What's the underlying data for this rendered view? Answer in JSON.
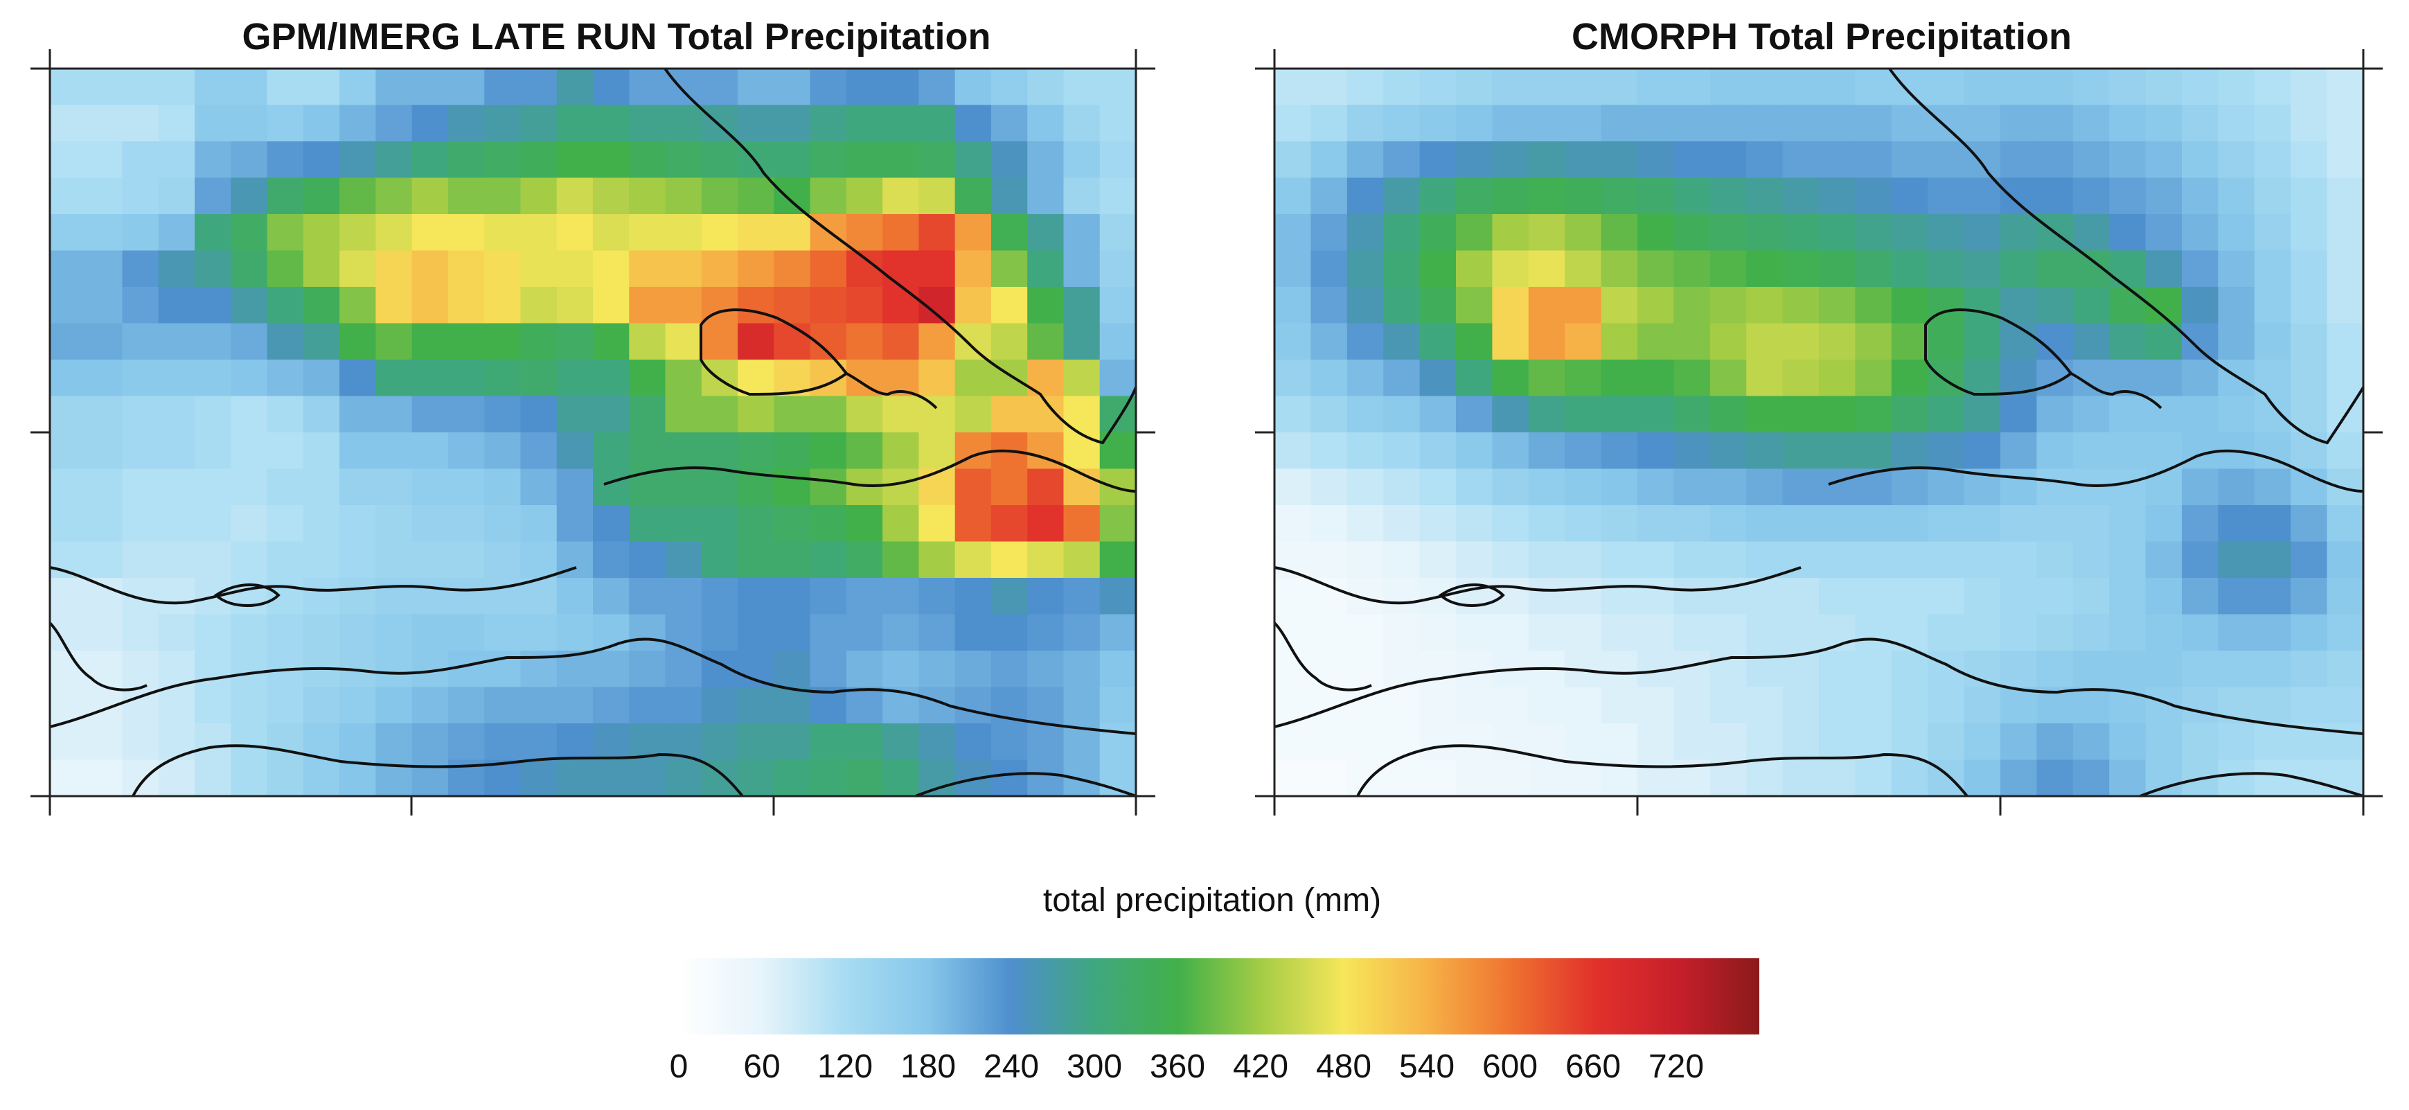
{
  "chart_data": [
    {
      "type": "heatmap",
      "title": "GPM/IMERG LATE RUN Total Precipitation",
      "units": "mm",
      "grid_rows": 20,
      "grid_cols": 30,
      "values": [
        [
          120,
          120,
          120,
          120,
          160,
          160,
          120,
          120,
          160,
          200,
          200,
          200,
          230,
          230,
          270,
          240,
          220,
          220,
          220,
          200,
          200,
          230,
          240,
          240,
          220,
          180,
          160,
          140,
          120,
          120
        ],
        [
          100,
          100,
          100,
          110,
          170,
          170,
          160,
          180,
          200,
          220,
          240,
          260,
          270,
          280,
          300,
          300,
          290,
          290,
          280,
          270,
          270,
          290,
          300,
          300,
          300,
          240,
          210,
          180,
          140,
          120
        ],
        [
          110,
          110,
          130,
          130,
          200,
          210,
          230,
          240,
          260,
          280,
          300,
          320,
          330,
          340,
          360,
          360,
          340,
          330,
          320,
          310,
          310,
          330,
          340,
          340,
          330,
          290,
          250,
          200,
          160,
          130
        ],
        [
          120,
          120,
          130,
          140,
          220,
          260,
          320,
          340,
          380,
          400,
          420,
          400,
          400,
          420,
          450,
          430,
          420,
          410,
          390,
          380,
          360,
          400,
          420,
          460,
          450,
          340,
          260,
          200,
          140,
          120
        ],
        [
          160,
          160,
          170,
          190,
          300,
          330,
          400,
          420,
          440,
          460,
          480,
          480,
          470,
          470,
          480,
          460,
          470,
          470,
          480,
          490,
          490,
          560,
          580,
          600,
          640,
          560,
          350,
          280,
          200,
          140
        ],
        [
          200,
          200,
          230,
          260,
          280,
          320,
          380,
          420,
          460,
          500,
          520,
          500,
          490,
          470,
          470,
          480,
          520,
          520,
          540,
          560,
          580,
          610,
          650,
          660,
          660,
          540,
          400,
          300,
          200,
          150
        ],
        [
          200,
          200,
          220,
          240,
          240,
          270,
          300,
          340,
          400,
          500,
          520,
          500,
          490,
          450,
          460,
          480,
          560,
          560,
          580,
          610,
          620,
          630,
          640,
          660,
          700,
          520,
          480,
          360,
          280,
          160
        ],
        [
          210,
          210,
          200,
          200,
          200,
          210,
          260,
          280,
          360,
          380,
          360,
          360,
          360,
          340,
          330,
          360,
          440,
          470,
          580,
          680,
          640,
          620,
          600,
          620,
          560,
          460,
          440,
          380,
          280,
          180
        ],
        [
          180,
          180,
          170,
          170,
          170,
          180,
          190,
          200,
          240,
          300,
          300,
          300,
          310,
          320,
          300,
          300,
          360,
          400,
          440,
          480,
          500,
          520,
          560,
          560,
          520,
          420,
          420,
          540,
          440,
          200
        ],
        [
          140,
          140,
          130,
          130,
          120,
          110,
          120,
          150,
          200,
          200,
          220,
          220,
          230,
          240,
          280,
          280,
          320,
          400,
          400,
          420,
          400,
          400,
          440,
          460,
          460,
          440,
          520,
          520,
          480,
          320
        ],
        [
          140,
          140,
          130,
          130,
          120,
          110,
          110,
          120,
          180,
          180,
          180,
          190,
          200,
          220,
          260,
          300,
          320,
          320,
          320,
          330,
          340,
          360,
          380,
          420,
          460,
          580,
          600,
          560,
          480,
          360
        ],
        [
          120,
          120,
          110,
          110,
          110,
          110,
          120,
          120,
          150,
          150,
          160,
          160,
          170,
          200,
          220,
          300,
          320,
          320,
          320,
          340,
          360,
          380,
          420,
          440,
          500,
          620,
          600,
          640,
          520,
          420
        ],
        [
          120,
          120,
          110,
          110,
          110,
          100,
          110,
          120,
          130,
          140,
          150,
          150,
          160,
          170,
          220,
          240,
          300,
          300,
          300,
          320,
          330,
          340,
          360,
          420,
          480,
          620,
          640,
          660,
          600,
          400
        ],
        [
          110,
          110,
          100,
          100,
          100,
          110,
          120,
          120,
          130,
          140,
          140,
          140,
          150,
          160,
          200,
          230,
          240,
          260,
          300,
          320,
          320,
          310,
          330,
          380,
          420,
          460,
          480,
          460,
          440,
          360
        ],
        [
          80,
          80,
          90,
          90,
          100,
          110,
          120,
          130,
          140,
          150,
          150,
          150,
          150,
          150,
          180,
          200,
          220,
          220,
          230,
          240,
          240,
          230,
          220,
          220,
          230,
          240,
          260,
          240,
          230,
          250
        ],
        [
          80,
          80,
          90,
          100,
          110,
          120,
          130,
          140,
          150,
          160,
          170,
          170,
          160,
          160,
          170,
          180,
          200,
          220,
          230,
          240,
          240,
          220,
          220,
          210,
          220,
          240,
          240,
          230,
          220,
          200
        ],
        [
          70,
          70,
          80,
          90,
          110,
          120,
          130,
          140,
          150,
          160,
          170,
          180,
          180,
          190,
          200,
          200,
          210,
          220,
          240,
          240,
          250,
          220,
          200,
          190,
          200,
          210,
          220,
          210,
          200,
          180
        ],
        [
          70,
          70,
          80,
          90,
          110,
          120,
          130,
          150,
          160,
          180,
          190,
          200,
          210,
          210,
          210,
          220,
          230,
          230,
          250,
          260,
          260,
          240,
          220,
          200,
          210,
          220,
          230,
          220,
          200,
          170
        ],
        [
          70,
          70,
          80,
          90,
          100,
          120,
          140,
          160,
          180,
          200,
          210,
          220,
          230,
          230,
          240,
          250,
          260,
          260,
          270,
          280,
          280,
          300,
          300,
          280,
          260,
          240,
          230,
          220,
          200,
          160
        ],
        [
          60,
          60,
          70,
          80,
          100,
          120,
          140,
          160,
          180,
          200,
          210,
          230,
          240,
          250,
          260,
          260,
          260,
          270,
          280,
          290,
          300,
          310,
          320,
          300,
          270,
          250,
          240,
          220,
          200,
          160
        ]
      ]
    },
    {
      "type": "heatmap",
      "title": "CMORPH Total Precipitation",
      "units": "mm",
      "grid_rows": 20,
      "grid_cols": 30,
      "values": [
        [
          100,
          100,
          110,
          120,
          130,
          140,
          150,
          150,
          150,
          150,
          160,
          160,
          170,
          170,
          170,
          170,
          160,
          160,
          160,
          170,
          170,
          170,
          160,
          150,
          140,
          130,
          120,
          110,
          100,
          90
        ],
        [
          110,
          120,
          150,
          160,
          170,
          180,
          190,
          190,
          190,
          200,
          200,
          200,
          200,
          200,
          200,
          200,
          200,
          190,
          190,
          190,
          200,
          200,
          190,
          180,
          170,
          150,
          130,
          120,
          100,
          90
        ],
        [
          140,
          170,
          200,
          220,
          240,
          250,
          260,
          270,
          260,
          260,
          250,
          240,
          240,
          230,
          220,
          220,
          220,
          210,
          210,
          210,
          220,
          220,
          210,
          200,
          190,
          170,
          150,
          130,
          110,
          90
        ],
        [
          170,
          200,
          240,
          270,
          300,
          330,
          340,
          350,
          340,
          330,
          320,
          300,
          290,
          280,
          270,
          260,
          250,
          240,
          230,
          230,
          240,
          240,
          230,
          220,
          210,
          190,
          170,
          140,
          120,
          100
        ],
        [
          190,
          220,
          260,
          300,
          340,
          380,
          420,
          430,
          410,
          380,
          360,
          340,
          330,
          320,
          310,
          300,
          290,
          280,
          270,
          260,
          280,
          290,
          270,
          240,
          220,
          200,
          180,
          150,
          120,
          100
        ],
        [
          190,
          230,
          270,
          310,
          360,
          420,
          460,
          470,
          440,
          410,
          390,
          380,
          370,
          360,
          350,
          340,
          320,
          300,
          290,
          280,
          300,
          320,
          320,
          300,
          260,
          220,
          190,
          160,
          130,
          100
        ],
        [
          180,
          220,
          260,
          300,
          340,
          400,
          500,
          560,
          560,
          440,
          420,
          400,
          410,
          420,
          410,
          400,
          380,
          360,
          340,
          300,
          270,
          280,
          300,
          340,
          360,
          250,
          200,
          160,
          130,
          100
        ],
        [
          170,
          200,
          230,
          260,
          300,
          360,
          500,
          560,
          540,
          420,
          400,
          400,
          420,
          440,
          440,
          430,
          410,
          380,
          340,
          300,
          260,
          240,
          260,
          290,
          300,
          230,
          200,
          170,
          140,
          110
        ],
        [
          150,
          170,
          190,
          210,
          250,
          300,
          360,
          380,
          370,
          360,
          360,
          370,
          400,
          440,
          430,
          420,
          400,
          360,
          330,
          290,
          250,
          220,
          210,
          210,
          210,
          200,
          180,
          160,
          140,
          110
        ],
        [
          120,
          140,
          160,
          170,
          190,
          220,
          260,
          290,
          300,
          300,
          300,
          320,
          340,
          360,
          360,
          360,
          350,
          320,
          300,
          280,
          240,
          200,
          190,
          180,
          180,
          180,
          170,
          160,
          140,
          110
        ],
        [
          100,
          110,
          120,
          130,
          150,
          170,
          190,
          210,
          220,
          230,
          240,
          250,
          260,
          270,
          280,
          280,
          280,
          260,
          250,
          240,
          210,
          180,
          170,
          170,
          170,
          180,
          180,
          170,
          150,
          120
        ],
        [
          70,
          80,
          90,
          100,
          110,
          130,
          150,
          160,
          170,
          180,
          190,
          200,
          200,
          210,
          220,
          220,
          220,
          210,
          200,
          190,
          180,
          160,
          160,
          160,
          170,
          200,
          210,
          200,
          180,
          140
        ],
        [
          50,
          60,
          70,
          80,
          90,
          100,
          110,
          120,
          130,
          140,
          150,
          150,
          160,
          170,
          170,
          170,
          170,
          170,
          160,
          160,
          150,
          150,
          150,
          160,
          180,
          220,
          240,
          240,
          210,
          160
        ],
        [
          40,
          40,
          50,
          60,
          70,
          80,
          90,
          100,
          100,
          110,
          110,
          120,
          120,
          130,
          130,
          130,
          130,
          130,
          130,
          130,
          130,
          140,
          150,
          160,
          190,
          230,
          260,
          260,
          230,
          180
        ],
        [
          30,
          30,
          40,
          50,
          60,
          70,
          70,
          80,
          80,
          90,
          90,
          100,
          100,
          100,
          100,
          110,
          110,
          110,
          110,
          120,
          130,
          130,
          140,
          160,
          180,
          210,
          230,
          230,
          210,
          170
        ],
        [
          30,
          30,
          30,
          40,
          50,
          60,
          60,
          70,
          70,
          80,
          80,
          90,
          90,
          100,
          100,
          100,
          110,
          110,
          120,
          120,
          130,
          140,
          150,
          160,
          170,
          180,
          190,
          190,
          180,
          160
        ],
        [
          30,
          30,
          30,
          40,
          40,
          50,
          60,
          60,
          70,
          70,
          80,
          80,
          90,
          100,
          100,
          110,
          110,
          120,
          130,
          140,
          150,
          160,
          170,
          170,
          170,
          160,
          160,
          160,
          150,
          140
        ],
        [
          30,
          30,
          30,
          30,
          40,
          50,
          50,
          60,
          60,
          70,
          70,
          80,
          90,
          90,
          100,
          110,
          110,
          120,
          130,
          150,
          170,
          180,
          180,
          170,
          160,
          150,
          140,
          140,
          130,
          130
        ],
        [
          30,
          30,
          30,
          30,
          40,
          40,
          50,
          50,
          60,
          60,
          70,
          80,
          80,
          90,
          100,
          110,
          110,
          120,
          140,
          160,
          190,
          210,
          200,
          180,
          160,
          140,
          130,
          120,
          120,
          120
        ],
        [
          20,
          20,
          30,
          30,
          30,
          40,
          40,
          50,
          50,
          60,
          70,
          70,
          80,
          90,
          100,
          100,
          110,
          130,
          150,
          180,
          210,
          230,
          220,
          190,
          160,
          140,
          120,
          110,
          110,
          110
        ]
      ]
    }
  ],
  "colorbar": {
    "label": "total precipitation (mm)",
    "min": 0,
    "max": 780,
    "ticks": [
      "0",
      "60",
      "120",
      "180",
      "240",
      "300",
      "360",
      "420",
      "480",
      "540",
      "600",
      "660",
      "720"
    ],
    "colors": [
      "#ffffff",
      "#e6f4fb",
      "#a8dcf2",
      "#86c6ea",
      "#4e8fcd",
      "#3fa77e",
      "#41b04a",
      "#a4cc45",
      "#f6e65a",
      "#f6b247",
      "#ef7330",
      "#e1322b",
      "#c71f2b",
      "#8b1a1a"
    ]
  },
  "coastline_color": "#111111"
}
